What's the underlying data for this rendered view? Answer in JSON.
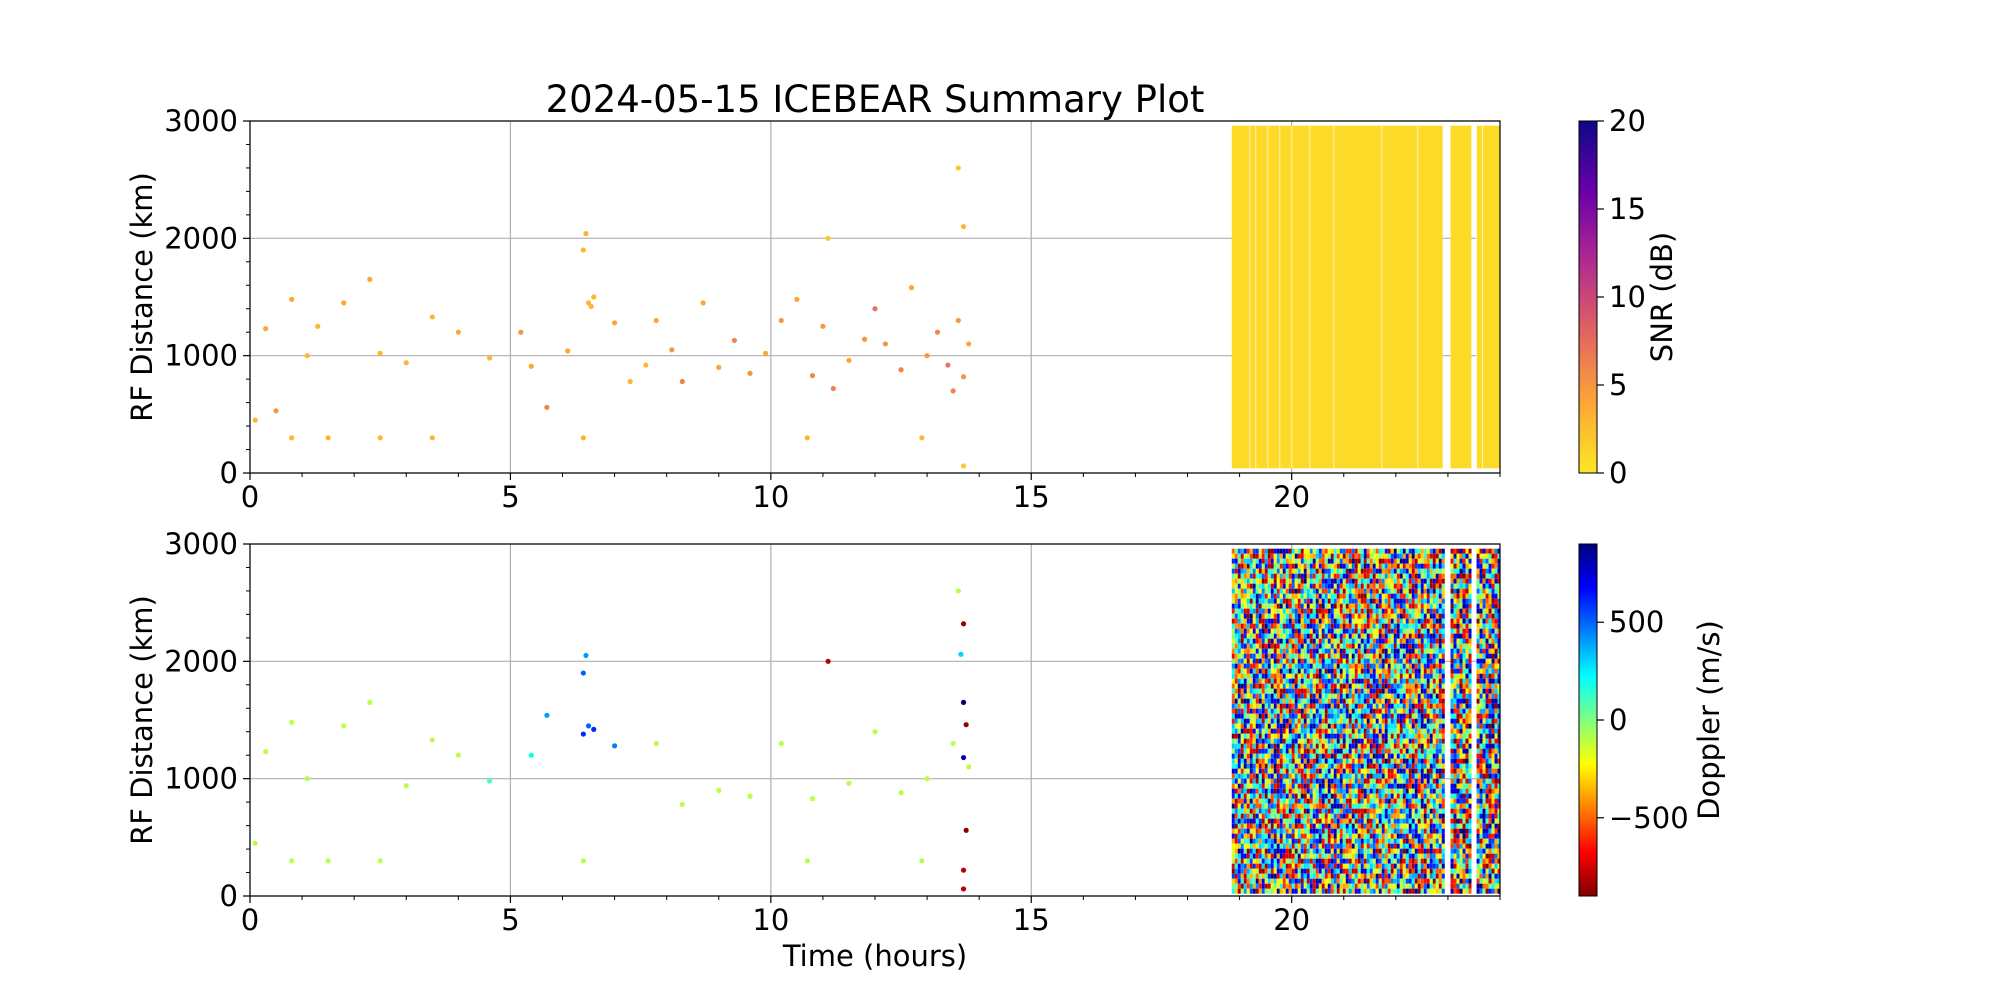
{
  "title": "2024-05-15 ICEBEAR Summary Plot",
  "colors": {
    "grid": "#b0b0b0",
    "snr_colormap": [
      "#fde725",
      "#fca636",
      "#e16462",
      "#b12a90",
      "#6a00a8",
      "#0d0887"
    ],
    "doppler_colormap": [
      "#7f0000",
      "#ff0000",
      "#ff8000",
      "#ffff00",
      "#80ff80",
      "#00ffff",
      "#0080ff",
      "#0000ff",
      "#00007f"
    ]
  },
  "chart_data": [
    {
      "type": "scatter",
      "panel": "snr",
      "xlabel": "",
      "ylabel": "RF Distance (km)",
      "xlim": [
        0,
        24
      ],
      "ylim": [
        0,
        3000
      ],
      "xticks": [
        0,
        5,
        10,
        15,
        20
      ],
      "yticks": [
        0,
        1000,
        2000,
        3000
      ],
      "grid": true,
      "colorbar": {
        "label": "SNR (dB)",
        "range": [
          0,
          20
        ],
        "ticks": [
          0,
          5,
          10,
          15,
          20
        ],
        "colormap": "plasma_r"
      },
      "series": [
        {
          "values": [
            [
              0.1,
              450,
              3
            ],
            [
              0.3,
              1230,
              4
            ],
            [
              0.5,
              530,
              5
            ],
            [
              0.8,
              1480,
              4
            ],
            [
              1.1,
              1000,
              3
            ],
            [
              1.3,
              1250,
              3
            ],
            [
              1.8,
              1450,
              4
            ],
            [
              2.3,
              1650,
              4
            ],
            [
              2.5,
              1020,
              3
            ],
            [
              3.0,
              940,
              3
            ],
            [
              3.5,
              1330,
              3
            ],
            [
              4.0,
              1200,
              4
            ],
            [
              4.6,
              980,
              3
            ],
            [
              5.2,
              1200,
              5
            ],
            [
              5.4,
              910,
              4
            ],
            [
              5.7,
              560,
              6
            ],
            [
              6.1,
              1040,
              4
            ],
            [
              6.4,
              1900,
              3
            ],
            [
              6.45,
              2040,
              3
            ],
            [
              6.5,
              1450,
              3
            ],
            [
              6.6,
              1500,
              3
            ],
            [
              6.55,
              1420,
              3
            ],
            [
              7.0,
              1280,
              4
            ],
            [
              7.3,
              780,
              3
            ],
            [
              7.6,
              920,
              3
            ],
            [
              7.8,
              1300,
              4
            ],
            [
              8.1,
              1050,
              5
            ],
            [
              8.3,
              780,
              6
            ],
            [
              8.7,
              1450,
              4
            ],
            [
              9.0,
              900,
              4
            ],
            [
              9.3,
              1130,
              6
            ],
            [
              9.6,
              850,
              5
            ],
            [
              9.9,
              1020,
              4
            ],
            [
              10.2,
              1300,
              5
            ],
            [
              10.5,
              1480,
              4
            ],
            [
              10.8,
              830,
              6
            ],
            [
              11.0,
              1250,
              5
            ],
            [
              11.2,
              720,
              6
            ],
            [
              11.5,
              960,
              4
            ],
            [
              11.8,
              1140,
              5
            ],
            [
              12.0,
              1400,
              7
            ],
            [
              12.2,
              1100,
              5
            ],
            [
              12.5,
              880,
              6
            ],
            [
              12.7,
              1580,
              4
            ],
            [
              13.0,
              1000,
              5
            ],
            [
              13.2,
              1200,
              6
            ],
            [
              13.4,
              920,
              7
            ],
            [
              13.6,
              1300,
              5
            ],
            [
              13.7,
              820,
              5
            ],
            [
              13.8,
              1100,
              4
            ],
            [
              11.1,
              2000,
              2
            ],
            [
              13.6,
              2600,
              2
            ],
            [
              13.7,
              2100,
              3
            ],
            [
              13.7,
              60,
              2
            ],
            [
              13.5,
              700,
              6
            ],
            [
              0.8,
              300,
              3
            ],
            [
              1.5,
              300,
              3
            ],
            [
              2.5,
              300,
              3
            ],
            [
              3.5,
              300,
              3
            ],
            [
              6.4,
              300,
              3
            ],
            [
              10.7,
              300,
              3
            ],
            [
              12.9,
              300,
              3
            ]
          ]
        }
      ]
    },
    {
      "type": "scatter",
      "panel": "doppler",
      "xlabel": "Time (hours)",
      "ylabel": "RF Distance (km)",
      "xlim": [
        0,
        24
      ],
      "ylim": [
        0,
        3000
      ],
      "xticks": [
        0,
        5,
        10,
        15,
        20
      ],
      "yticks": [
        0,
        1000,
        2000,
        3000
      ],
      "grid": true,
      "colorbar": {
        "label": "Doppler (m/s)",
        "range": [
          -900,
          900
        ],
        "ticks": [
          -500,
          0,
          500
        ],
        "tick_labels": [
          "−500",
          "0",
          "500"
        ],
        "colormap": "jet_r"
      },
      "series": [
        {
          "values": [
            [
              0.1,
              450,
              -100
            ],
            [
              0.3,
              1230,
              -100
            ],
            [
              0.8,
              1480,
              -100
            ],
            [
              1.1,
              1000,
              -100
            ],
            [
              1.8,
              1450,
              -100
            ],
            [
              2.3,
              1650,
              -100
            ],
            [
              3.0,
              940,
              -100
            ],
            [
              3.5,
              1330,
              -100
            ],
            [
              4.0,
              1200,
              -100
            ],
            [
              4.6,
              980,
              100
            ],
            [
              5.4,
              1200,
              200
            ],
            [
              5.7,
              1540,
              400
            ],
            [
              6.4,
              1900,
              500
            ],
            [
              6.45,
              2050,
              400
            ],
            [
              6.5,
              1450,
              500
            ],
            [
              6.6,
              1420,
              600
            ],
            [
              6.4,
              1380,
              600
            ],
            [
              7.0,
              1280,
              450
            ],
            [
              7.8,
              1300,
              -100
            ],
            [
              8.3,
              780,
              -100
            ],
            [
              9.0,
              900,
              -100
            ],
            [
              9.6,
              850,
              -100
            ],
            [
              10.2,
              1300,
              -100
            ],
            [
              10.8,
              830,
              -100
            ],
            [
              11.1,
              2000,
              -800
            ],
            [
              11.5,
              960,
              -100
            ],
            [
              12.0,
              1400,
              -100
            ],
            [
              12.5,
              880,
              -100
            ],
            [
              13.0,
              1000,
              -100
            ],
            [
              13.5,
              1300,
              -100
            ],
            [
              13.6,
              2600,
              -100
            ],
            [
              13.65,
              2060,
              300
            ],
            [
              13.7,
              2320,
              -850
            ],
            [
              13.7,
              1650,
              900
            ],
            [
              13.75,
              1460,
              -850
            ],
            [
              13.7,
              1180,
              800
            ],
            [
              13.75,
              560,
              -880
            ],
            [
              13.7,
              220,
              -800
            ],
            [
              13.7,
              60,
              -800
            ],
            [
              13.8,
              1100,
              -100
            ],
            [
              0.8,
              300,
              -100
            ],
            [
              1.5,
              300,
              -100
            ],
            [
              2.5,
              300,
              -100
            ],
            [
              6.4,
              300,
              -100
            ],
            [
              10.7,
              300,
              -100
            ],
            [
              12.9,
              300,
              -100
            ]
          ]
        }
      ]
    }
  ]
}
